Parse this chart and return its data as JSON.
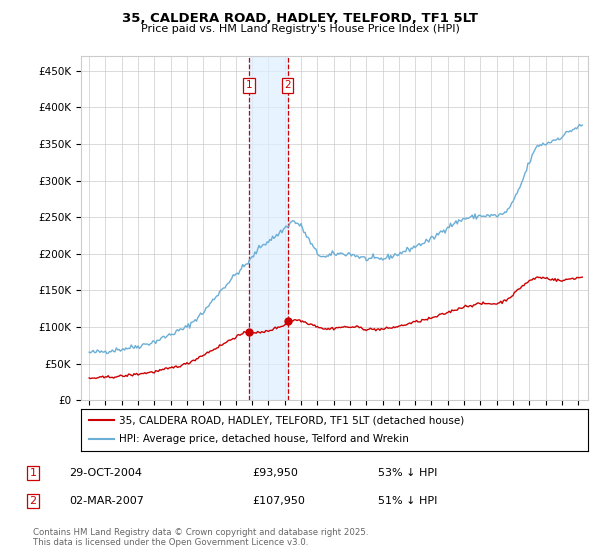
{
  "title": "35, CALDERA ROAD, HADLEY, TELFORD, TF1 5LT",
  "subtitle": "Price paid vs. HM Land Registry's House Price Index (HPI)",
  "ylim": [
    0,
    470000
  ],
  "yticks": [
    0,
    50000,
    100000,
    150000,
    200000,
    250000,
    300000,
    350000,
    400000,
    450000
  ],
  "ytick_labels": [
    "£0",
    "£50K",
    "£100K",
    "£150K",
    "£200K",
    "£250K",
    "£300K",
    "£350K",
    "£400K",
    "£450K"
  ],
  "sale1_price": 93950,
  "sale2_price": 107950,
  "sale1_x": 2004.83,
  "sale2_x": 2007.17,
  "hpi_color": "#6baed6",
  "sale_color": "#cc0000",
  "legend_sale": "35, CALDERA ROAD, HADLEY, TELFORD, TF1 5LT (detached house)",
  "legend_hpi": "HPI: Average price, detached house, Telford and Wrekin",
  "annotation1_date": "29-OCT-2004",
  "annotation1_price": "£93,950",
  "annotation1_pct": "53% ↓ HPI",
  "annotation2_date": "02-MAR-2007",
  "annotation2_price": "£107,950",
  "annotation2_pct": "51% ↓ HPI",
  "footer": "Contains HM Land Registry data © Crown copyright and database right 2025.\nThis data is licensed under the Open Government Licence v3.0.",
  "background_color": "#ffffff",
  "shade_color": "#ddeeff",
  "grid_color": "#cccccc"
}
